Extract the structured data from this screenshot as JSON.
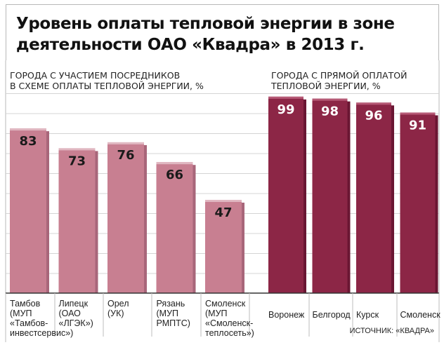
{
  "title_lines": [
    "Уровень оплаты тепловой энергии в зоне",
    "деятельности ОАО «Квадра» в 2013 г."
  ],
  "group_labels": [
    {
      "lines": [
        "ГОРОДА С УЧАСТИЕМ ПОСРЕДНИКОВ",
        "В СХЕМЕ ОПЛАТЫ ТЕПЛОВОЙ ЭНЕРГИИ, %"
      ]
    },
    {
      "lines": [
        "ГОРОДА С ПРЯМОЙ ОПЛАТОЙ",
        "ТЕПЛОВОЙ ЭНЕРГИИ, %"
      ]
    }
  ],
  "source": "ИСТОЧНИК: «КВАДРА»",
  "colors": {
    "light_bar": "#c87f91",
    "light_bar_top": "#e0b7c1",
    "light_bar_side": "#a8667a",
    "dark_bar": "#8c2646",
    "dark_bar_top": "#b65a76",
    "dark_bar_side": "#6a1633",
    "grid": "#d4d4d4",
    "axis": "#333333",
    "value_text_light": "#1a1a1a",
    "value_text_dark": "#ffffff"
  },
  "chart_data": {
    "type": "bar",
    "title": "Уровень оплаты тепловой энергии в зоне деятельности ОАО «Квадра» в 2013 г.",
    "ylabel": "%",
    "ylim": [
      0,
      100
    ],
    "grid": true,
    "groups": [
      {
        "name": "ГОРОДА С УЧАСТИЕМ ПОСРЕДНИКОВ В СХЕМЕ ОПЛАТЫ ТЕПЛОВОЙ ЭНЕРГИИ, %",
        "style": "light",
        "categories": [
          "Тамбов\n(МУП\n«Тамбов-\nинвестсервис»)",
          "Липецк\n(ОАО\n«ЛГЭК»)",
          "Орел\n(УК)",
          "Рязань\n(МУП\nРМПТС)",
          "Смоленск\n(МУП\n«Смоленск-\nтеплосеть»)"
        ],
        "values": [
          83,
          73,
          76,
          66,
          47
        ]
      },
      {
        "name": "ГОРОДА С ПРЯМОЙ ОПЛАТОЙ ТЕПЛОВОЙ ЭНЕРГИИ, %",
        "style": "dark",
        "categories": [
          "Воронеж",
          "Белгород",
          "Курск",
          "Смоленск"
        ],
        "values": [
          99,
          98,
          96,
          91
        ]
      }
    ]
  }
}
